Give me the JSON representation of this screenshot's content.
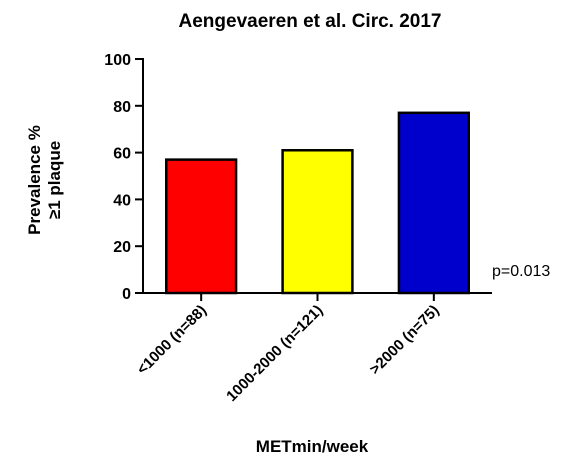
{
  "chart_data": {
    "type": "bar",
    "title": "Aengevaeren et al. Circ. 2017",
    "xlabel": "METmin/week",
    "ylabel_lines": [
      "Prevalence %",
      "≥1 plaque"
    ],
    "categories": [
      "<1000 (n=88)",
      "1000-2000 (n=121)",
      ">2000 (n=75)"
    ],
    "values": [
      57,
      61,
      77
    ],
    "bar_colors": [
      "#ff0000",
      "#ffff00",
      "#0000cc"
    ],
    "ylim": [
      0,
      100
    ],
    "yticks": [
      0,
      20,
      40,
      60,
      80,
      100
    ],
    "grid": false,
    "annotation": "p=0.013"
  }
}
